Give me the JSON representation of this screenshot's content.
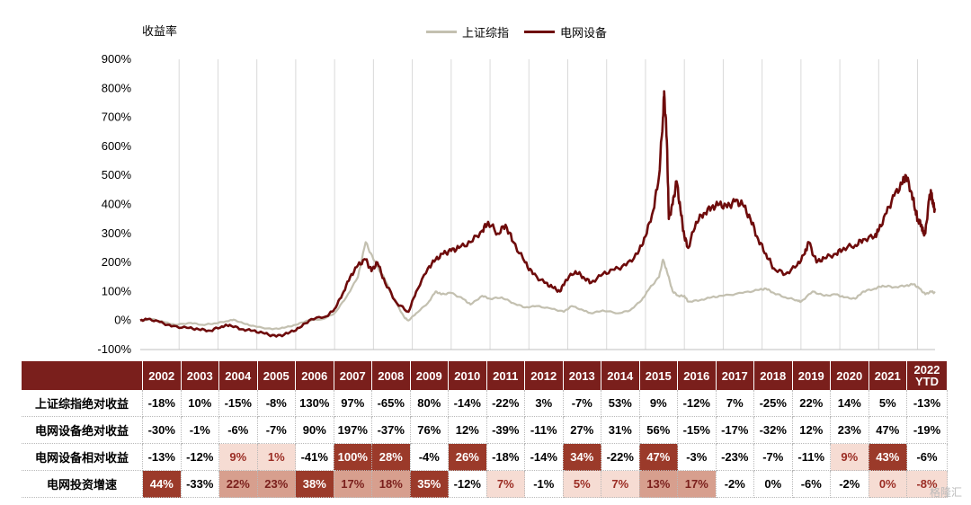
{
  "chart_data": {
    "type": "line",
    "ylabel": "收益率",
    "ylim": [
      -100,
      900
    ],
    "yticks": [
      "-100%",
      "0%",
      "100%",
      "200%",
      "300%",
      "400%",
      "500%",
      "600%",
      "700%",
      "800%",
      "900%"
    ],
    "xlim": [
      2002.0,
      2022.45
    ],
    "series": [
      {
        "name": "上证综指",
        "color": "#c3c0b0",
        "points": [
          [
            2002.0,
            0
          ],
          [
            2002.3,
            5
          ],
          [
            2002.6,
            -5
          ],
          [
            2002.9,
            -15
          ],
          [
            2003.3,
            -8
          ],
          [
            2003.6,
            -15
          ],
          [
            2003.9,
            -10
          ],
          [
            2004.2,
            -3
          ],
          [
            2004.4,
            3
          ],
          [
            2004.7,
            -12
          ],
          [
            2005.0,
            -22
          ],
          [
            2005.4,
            -30
          ],
          [
            2005.7,
            -25
          ],
          [
            2006.0,
            -15
          ],
          [
            2006.3,
            0
          ],
          [
            2006.7,
            5
          ],
          [
            2007.0,
            25
          ],
          [
            2007.3,
            80
          ],
          [
            2007.6,
            150
          ],
          [
            2007.8,
            270
          ],
          [
            2008.0,
            210
          ],
          [
            2008.3,
            140
          ],
          [
            2008.5,
            80
          ],
          [
            2008.8,
            10
          ],
          [
            2008.9,
            0
          ],
          [
            2009.1,
            25
          ],
          [
            2009.4,
            60
          ],
          [
            2009.6,
            100
          ],
          [
            2009.75,
            90
          ],
          [
            2010.0,
            95
          ],
          [
            2010.3,
            75
          ],
          [
            2010.5,
            55
          ],
          [
            2010.8,
            85
          ],
          [
            2011.0,
            75
          ],
          [
            2011.3,
            80
          ],
          [
            2011.6,
            60
          ],
          [
            2011.9,
            45
          ],
          [
            2012.2,
            50
          ],
          [
            2012.6,
            40
          ],
          [
            2012.9,
            30
          ],
          [
            2013.1,
            50
          ],
          [
            2013.4,
            35
          ],
          [
            2013.6,
            25
          ],
          [
            2013.9,
            35
          ],
          [
            2014.3,
            25
          ],
          [
            2014.6,
            35
          ],
          [
            2014.9,
            70
          ],
          [
            2015.1,
            110
          ],
          [
            2015.35,
            150
          ],
          [
            2015.45,
            210
          ],
          [
            2015.55,
            170
          ],
          [
            2015.7,
            100
          ],
          [
            2015.85,
            85
          ],
          [
            2016.0,
            85
          ],
          [
            2016.1,
            65
          ],
          [
            2016.4,
            70
          ],
          [
            2016.7,
            80
          ],
          [
            2017.0,
            85
          ],
          [
            2017.5,
            95
          ],
          [
            2017.9,
            105
          ],
          [
            2018.1,
            110
          ],
          [
            2018.3,
            95
          ],
          [
            2018.6,
            80
          ],
          [
            2018.9,
            70
          ],
          [
            2019.0,
            65
          ],
          [
            2019.3,
            100
          ],
          [
            2019.6,
            85
          ],
          [
            2019.9,
            90
          ],
          [
            2020.1,
            80
          ],
          [
            2020.4,
            75
          ],
          [
            2020.6,
            100
          ],
          [
            2020.9,
            110
          ],
          [
            2021.1,
            120
          ],
          [
            2021.4,
            115
          ],
          [
            2021.7,
            120
          ],
          [
            2021.9,
            125
          ],
          [
            2022.05,
            110
          ],
          [
            2022.2,
            90
          ],
          [
            2022.35,
            100
          ],
          [
            2022.45,
            95
          ]
        ]
      },
      {
        "name": "电网设备",
        "color": "#6e0b0b",
        "points": [
          [
            2002.0,
            0
          ],
          [
            2002.2,
            5
          ],
          [
            2002.5,
            -5
          ],
          [
            2002.8,
            -20
          ],
          [
            2003.2,
            -25
          ],
          [
            2003.5,
            -30
          ],
          [
            2003.8,
            -35
          ],
          [
            2004.1,
            -20
          ],
          [
            2004.3,
            -15
          ],
          [
            2004.6,
            -30
          ],
          [
            2004.9,
            -35
          ],
          [
            2005.2,
            -45
          ],
          [
            2005.5,
            -55
          ],
          [
            2005.8,
            -45
          ],
          [
            2006.1,
            -25
          ],
          [
            2006.4,
            5
          ],
          [
            2006.8,
            15
          ],
          [
            2007.0,
            40
          ],
          [
            2007.2,
            90
          ],
          [
            2007.4,
            150
          ],
          [
            2007.6,
            190
          ],
          [
            2007.8,
            210
          ],
          [
            2007.95,
            170
          ],
          [
            2008.1,
            200
          ],
          [
            2008.3,
            130
          ],
          [
            2008.6,
            60
          ],
          [
            2008.9,
            30
          ],
          [
            2009.1,
            100
          ],
          [
            2009.4,
            180
          ],
          [
            2009.6,
            210
          ],
          [
            2009.8,
            230
          ],
          [
            2010.0,
            240
          ],
          [
            2010.2,
            250
          ],
          [
            2010.5,
            270
          ],
          [
            2010.8,
            310
          ],
          [
            2010.95,
            340
          ],
          [
            2011.2,
            300
          ],
          [
            2011.4,
            330
          ],
          [
            2011.6,
            270
          ],
          [
            2011.9,
            200
          ],
          [
            2012.1,
            160
          ],
          [
            2012.4,
            130
          ],
          [
            2012.6,
            115
          ],
          [
            2012.8,
            100
          ],
          [
            2012.95,
            140
          ],
          [
            2013.2,
            170
          ],
          [
            2013.4,
            150
          ],
          [
            2013.6,
            130
          ],
          [
            2013.9,
            160
          ],
          [
            2014.2,
            175
          ],
          [
            2014.5,
            190
          ],
          [
            2014.8,
            230
          ],
          [
            2015.0,
            290
          ],
          [
            2015.2,
            380
          ],
          [
            2015.35,
            500
          ],
          [
            2015.45,
            700
          ],
          [
            2015.48,
            790
          ],
          [
            2015.55,
            620
          ],
          [
            2015.6,
            350
          ],
          [
            2015.7,
            400
          ],
          [
            2015.8,
            480
          ],
          [
            2015.9,
            380
          ],
          [
            2016.0,
            290
          ],
          [
            2016.1,
            250
          ],
          [
            2016.3,
            340
          ],
          [
            2016.5,
            370
          ],
          [
            2016.7,
            390
          ],
          [
            2016.9,
            400
          ],
          [
            2017.1,
            390
          ],
          [
            2017.3,
            410
          ],
          [
            2017.5,
            400
          ],
          [
            2017.7,
            350
          ],
          [
            2017.9,
            280
          ],
          [
            2018.1,
            230
          ],
          [
            2018.3,
            180
          ],
          [
            2018.6,
            160
          ],
          [
            2018.9,
            190
          ],
          [
            2019.1,
            230
          ],
          [
            2019.2,
            270
          ],
          [
            2019.4,
            200
          ],
          [
            2019.6,
            215
          ],
          [
            2019.9,
            230
          ],
          [
            2020.1,
            250
          ],
          [
            2020.4,
            260
          ],
          [
            2020.6,
            280
          ],
          [
            2020.9,
            290
          ],
          [
            2021.0,
            310
          ],
          [
            2021.2,
            370
          ],
          [
            2021.4,
            430
          ],
          [
            2021.6,
            470
          ],
          [
            2021.7,
            500
          ],
          [
            2021.85,
            440
          ],
          [
            2021.95,
            380
          ],
          [
            2022.0,
            350
          ],
          [
            2022.1,
            330
          ],
          [
            2022.15,
            300
          ],
          [
            2022.2,
            300
          ],
          [
            2022.3,
            420
          ],
          [
            2022.35,
            440
          ],
          [
            2022.4,
            400
          ],
          [
            2022.45,
            380
          ]
        ]
      }
    ],
    "x_gridlines": [
      2003,
      2004,
      2005,
      2006,
      2007,
      2008,
      2009,
      2010,
      2011,
      2012,
      2013,
      2014,
      2015,
      2016,
      2017,
      2018,
      2019,
      2020,
      2021,
      2022
    ]
  },
  "legend": [
    {
      "label": "上证综指",
      "color": "#c3c0b0"
    },
    {
      "label": "电网设备",
      "color": "#6e0b0b"
    }
  ],
  "table": {
    "years": [
      "2002",
      "2003",
      "2004",
      "2005",
      "2006",
      "2007",
      "2008",
      "2009",
      "2010",
      "2011",
      "2012",
      "2013",
      "2014",
      "2015",
      "2016",
      "2017",
      "2018",
      "2019",
      "2020",
      "2021",
      "2022 YTD"
    ],
    "rows": [
      {
        "label": "上证综指绝对收益",
        "values": [
          "-18%",
          "10%",
          "-15%",
          "-8%",
          "130%",
          "97%",
          "-65%",
          "80%",
          "-14%",
          "-22%",
          "3%",
          "-7%",
          "53%",
          "9%",
          "-12%",
          "7%",
          "-25%",
          "22%",
          "14%",
          "5%",
          "-13%"
        ],
        "highlight": [
          "",
          "",
          "",
          "",
          "",
          "",
          "",
          "",
          "",
          "",
          "",
          "",
          "",
          "",
          "",
          "",
          "",
          "",
          "",
          "",
          ""
        ]
      },
      {
        "label": "电网设备绝对收益",
        "values": [
          "-30%",
          "-1%",
          "-6%",
          "-7%",
          "90%",
          "197%",
          "-37%",
          "76%",
          "12%",
          "-39%",
          "-11%",
          "27%",
          "31%",
          "56%",
          "-15%",
          "-17%",
          "-32%",
          "12%",
          "23%",
          "47%",
          "-19%"
        ],
        "highlight": [
          "",
          "",
          "",
          "",
          "",
          "",
          "",
          "",
          "",
          "",
          "",
          "",
          "",
          "",
          "",
          "",
          "",
          "",
          "",
          "",
          ""
        ]
      },
      {
        "label": "电网设备相对收益",
        "values": [
          "-13%",
          "-12%",
          "9%",
          "1%",
          "-41%",
          "100%",
          "28%",
          "-4%",
          "26%",
          "-18%",
          "-14%",
          "34%",
          "-22%",
          "47%",
          "-3%",
          "-23%",
          "-7%",
          "-11%",
          "9%",
          "43%",
          "-6%"
        ],
        "highlight": [
          "",
          "",
          "light",
          "light",
          "",
          "dark",
          "dark",
          "",
          "dark",
          "",
          "",
          "dark",
          "",
          "dark",
          "",
          "",
          "",
          "",
          "light",
          "dark",
          ""
        ]
      },
      {
        "label": "电网投资增速",
        "values": [
          "44%",
          "-33%",
          "22%",
          "23%",
          "38%",
          "17%",
          "18%",
          "35%",
          "-12%",
          "7%",
          "-1%",
          "5%",
          "7%",
          "13%",
          "17%",
          "-2%",
          "0%",
          "-6%",
          "-2%",
          "0%",
          "-8%"
        ],
        "highlight": [
          "dark",
          "",
          "mid",
          "mid",
          "dark",
          "mid",
          "mid",
          "dark",
          "",
          "light",
          "",
          "light",
          "light",
          "mid",
          "mid",
          "",
          "",
          "",
          "",
          "light",
          "light"
        ]
      }
    ]
  },
  "watermark": "格隆汇"
}
